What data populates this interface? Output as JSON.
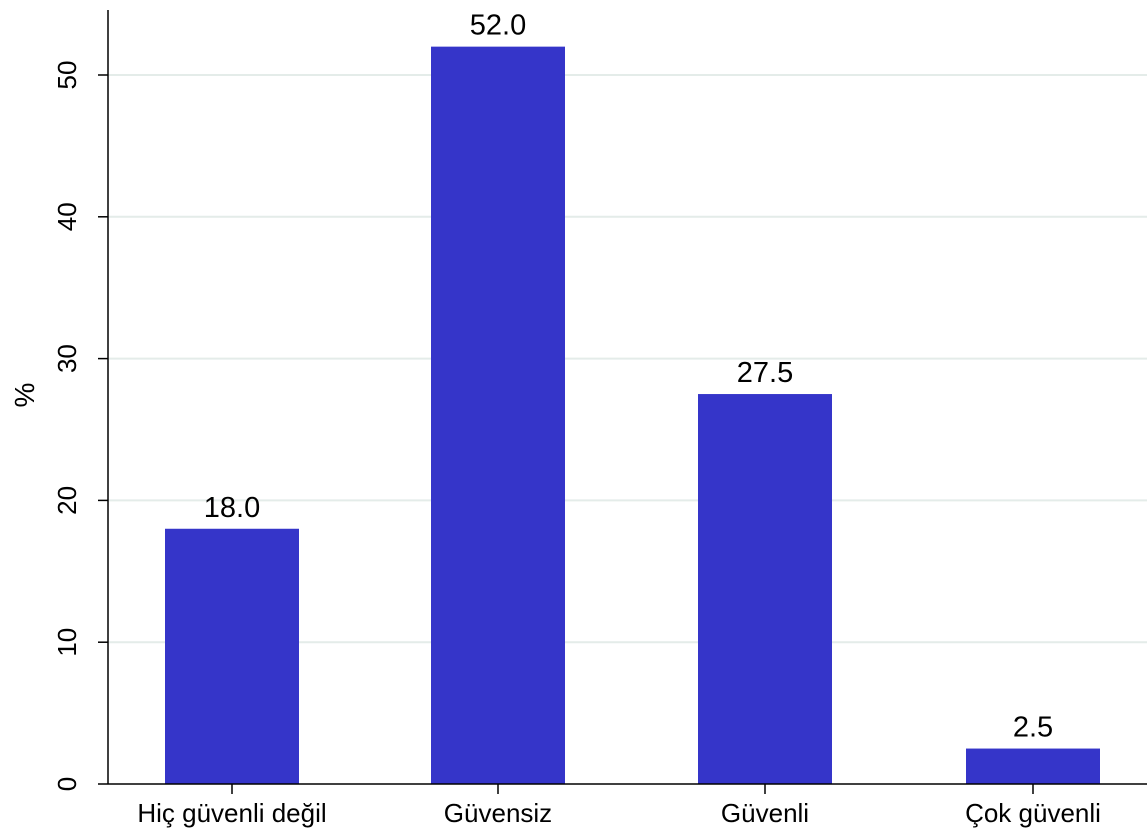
{
  "chart_data": {
    "type": "bar",
    "title": "",
    "xlabel": "",
    "ylabel": "%",
    "categories": [
      "Hiç güvenli değil",
      "Güvensiz",
      "Güvenli",
      "Çok güvenli"
    ],
    "values": [
      18.0,
      52.0,
      27.5,
      2.5
    ],
    "data_labels": [
      "18.0",
      "52.0",
      "27.5",
      "2.5"
    ],
    "ylim": [
      0,
      55
    ],
    "yticks": [
      0,
      10,
      20,
      30,
      40,
      50
    ],
    "ytick_labels": [
      "0",
      "10",
      "20",
      "30",
      "40",
      "50"
    ],
    "grid": "horizontal",
    "legend": "none",
    "colors": {
      "bar": "#3535c9",
      "grid": "#e4ece9",
      "axis": "#000000"
    }
  }
}
